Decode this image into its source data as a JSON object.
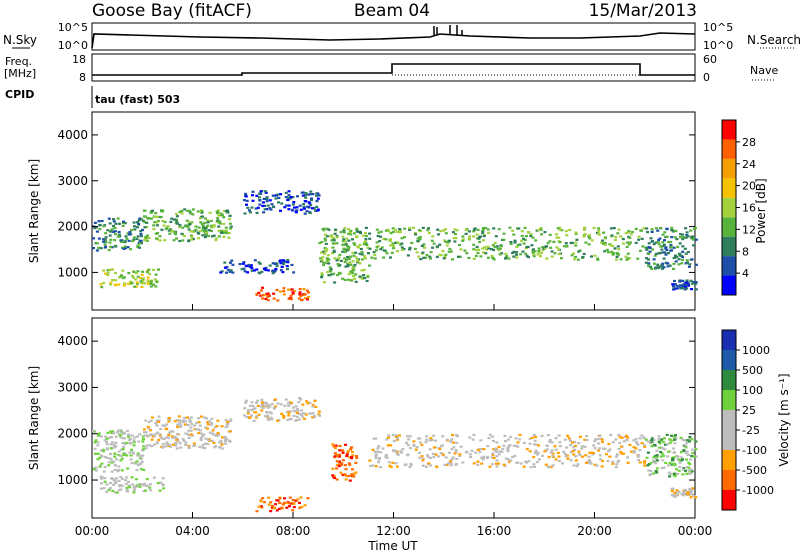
{
  "header": {
    "station": "Goose Bay (fitACF)",
    "beam": "Beam 04",
    "date": "15/Mar/2013"
  },
  "strip_labels": {
    "nsky": "N.Sky",
    "nsky_top": "10^5",
    "nsky_bottom": "10^0",
    "nsearch": "N.Search",
    "freq": "Freq.",
    "freq_unit": "[MHz]",
    "freq_top": "18",
    "freq_bottom": "8",
    "nave": "Nave",
    "nave_top": "60",
    "nave_bottom": "0",
    "cpid": "CPID",
    "cpid_value": "tau (fast) 503"
  },
  "colors": {
    "power": [
      "#0000ff",
      "#1d4fa8",
      "#2e7d5b",
      "#57b33b",
      "#a4d23c",
      "#f5c200",
      "#f59f00",
      "#ff6000",
      "#ff0000"
    ],
    "velocity": [
      "#ff0000",
      "#ff6a00",
      "#ffa000",
      "#bdbdbd",
      "#bdbdbd",
      "#6fd23c",
      "#2e8b3d",
      "#1d5aa8",
      "#1a2fb0"
    ]
  },
  "chart_data": [
    {
      "type": "heatmap",
      "title": "Power",
      "xlabel": "Time UT",
      "ylabel": "Slant Range [km]",
      "colorbar_label": "Power [dB]",
      "colorbar_ticks": [
        "4",
        "8",
        "12",
        "16",
        "20",
        "24",
        "28"
      ],
      "x_ticks": [
        "00:00",
        "04:00",
        "08:00",
        "12:00",
        "16:00",
        "20:00",
        "00:00"
      ],
      "y_ticks": [
        "1000",
        "2000",
        "3000",
        "4000"
      ],
      "xlim": [
        0,
        24
      ],
      "ylim": [
        180,
        4500
      ],
      "bands": [
        {
          "t0": 0.0,
          "t1": 2.0,
          "r0": 1500,
          "r1": 2200,
          "level": 2
        },
        {
          "t0": 0.3,
          "t1": 2.6,
          "r0": 700,
          "r1": 1100,
          "level": 4
        },
        {
          "t0": 2.0,
          "t1": 5.5,
          "r0": 1700,
          "r1": 2400,
          "level": 3
        },
        {
          "t0": 6.0,
          "t1": 9.0,
          "r0": 2300,
          "r1": 2800,
          "level": 1
        },
        {
          "t0": 6.5,
          "t1": 8.6,
          "r0": 400,
          "r1": 700,
          "level": 7
        },
        {
          "t0": 5.0,
          "t1": 8.0,
          "r0": 1000,
          "r1": 1300,
          "level": 1
        },
        {
          "t0": 9.0,
          "t1": 11.0,
          "r0": 800,
          "r1": 2000,
          "level": 3
        },
        {
          "t0": 11.0,
          "t1": 22.0,
          "r0": 1300,
          "r1": 2000,
          "level": 3
        },
        {
          "t0": 22.0,
          "t1": 24.0,
          "r0": 1100,
          "r1": 2000,
          "level": 2
        },
        {
          "t0": 23.0,
          "t1": 24.0,
          "r0": 650,
          "r1": 850,
          "level": 1
        }
      ]
    },
    {
      "type": "heatmap",
      "title": "Velocity",
      "xlabel": "Time UT",
      "ylabel": "Slant Range [km]",
      "colorbar_label": "Velocity [m s⁻¹]",
      "colorbar_ticks": [
        "-1000",
        "-500",
        "-100",
        "-25",
        "25",
        "100",
        "500",
        "1000"
      ],
      "x_ticks": [
        "00:00",
        "04:00",
        "08:00",
        "12:00",
        "16:00",
        "20:00",
        "00:00"
      ],
      "y_ticks": [
        "1000",
        "2000",
        "3000",
        "4000"
      ],
      "xlim": [
        0,
        24
      ],
      "ylim": [
        180,
        4500
      ],
      "bands": [
        {
          "t0": 0.0,
          "t1": 2.0,
          "r0": 1200,
          "r1": 2100,
          "level": 4
        },
        {
          "t0": 0.3,
          "t1": 2.8,
          "r0": 750,
          "r1": 1100,
          "level": 4
        },
        {
          "t0": 2.0,
          "t1": 5.5,
          "r0": 1700,
          "r1": 2400,
          "level": 3
        },
        {
          "t0": 6.0,
          "t1": 9.0,
          "r0": 2300,
          "r1": 2800,
          "level": 3
        },
        {
          "t0": 6.5,
          "t1": 8.6,
          "r0": 350,
          "r1": 650,
          "level": 1
        },
        {
          "t0": 9.5,
          "t1": 10.5,
          "r0": 1000,
          "r1": 1800,
          "level": 1
        },
        {
          "t0": 11.0,
          "t1": 22.0,
          "r0": 1300,
          "r1": 2000,
          "level": 3
        },
        {
          "t0": 22.0,
          "t1": 24.0,
          "r0": 1100,
          "r1": 2000,
          "level": 5
        },
        {
          "t0": 23.0,
          "t1": 24.0,
          "r0": 650,
          "r1": 850,
          "level": 3
        }
      ]
    }
  ]
}
